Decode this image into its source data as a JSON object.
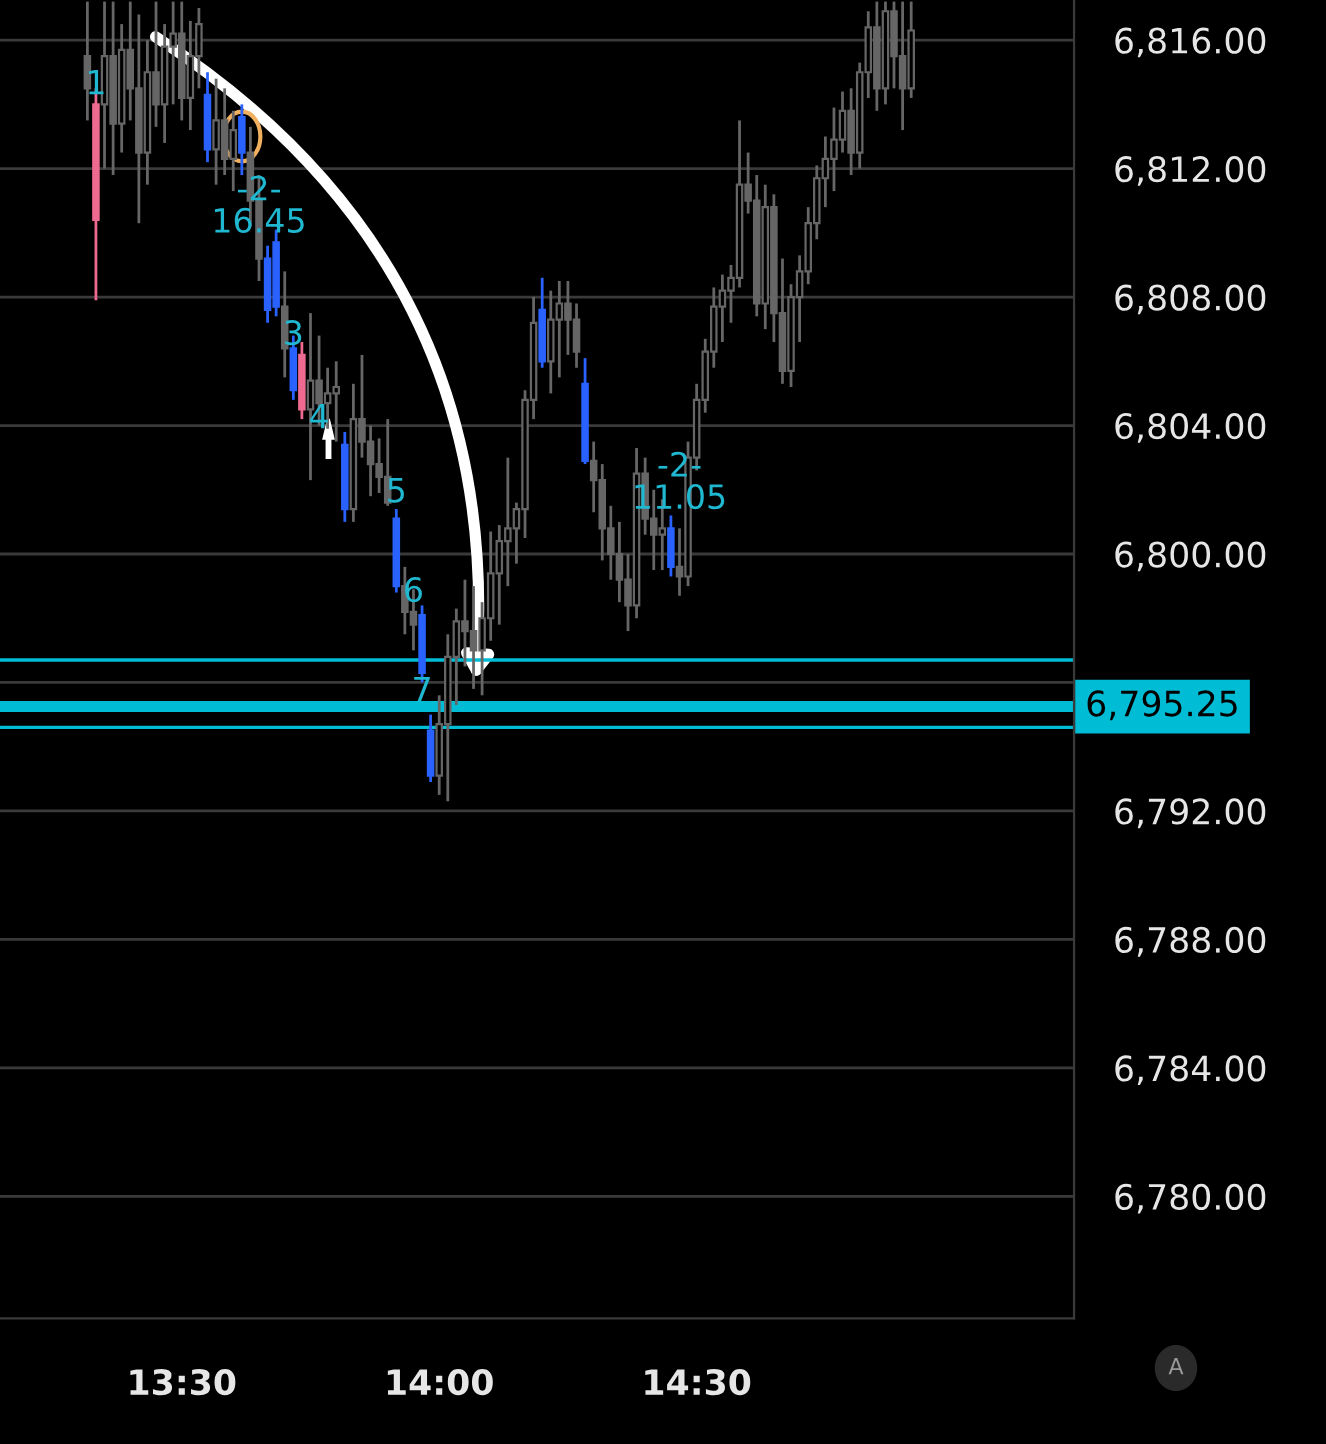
{
  "chart_data": {
    "type": "candlestick",
    "x": [
      13.3167,
      13.3333,
      13.35,
      13.3667,
      13.3833,
      13.4,
      13.4167,
      13.4333,
      13.45,
      13.4667,
      13.4833,
      13.5,
      13.5167,
      13.5333,
      13.55,
      13.5667,
      13.5833,
      13.6,
      13.6167,
      13.6333,
      13.65,
      13.6667,
      13.6833,
      13.7,
      13.7167,
      13.7333,
      13.75,
      13.7667,
      13.7833,
      13.8,
      13.8167,
      13.8333,
      13.85,
      13.8667,
      13.8833,
      13.9,
      13.9167,
      13.9333,
      13.95,
      13.9667,
      13.9833,
      14.0,
      14.0167,
      14.0333,
      14.05,
      14.0667,
      14.0833,
      14.1,
      14.1167,
      14.1333,
      14.15,
      14.1667,
      14.1833,
      14.2,
      14.2167,
      14.2333,
      14.25,
      14.2667,
      14.2833,
      14.3,
      14.3167,
      14.3333,
      14.35,
      14.3667,
      14.3833,
      14.4,
      14.4167,
      14.4333,
      14.45,
      14.4667,
      14.4833,
      14.5,
      14.5167,
      14.5333,
      14.55,
      14.5667,
      14.5833,
      14.6,
      14.6167,
      14.6333,
      14.65,
      14.6667,
      14.6833,
      14.7,
      14.7167,
      14.7333,
      14.75,
      14.7667,
      14.7833,
      14.8,
      14.8167,
      14.8333,
      14.85,
      14.8667,
      14.8833,
      14.9,
      14.9167
    ],
    "ohlc": [
      [
        6815.5,
        6817.2,
        6813.5,
        6814.5
      ],
      [
        6814.0,
        6814.5,
        6807.9,
        6810.4
      ],
      [
        6814,
        6817.2,
        6812,
        6815.5
      ],
      [
        6815.5,
        6817.2,
        6811.8,
        6813.4
      ],
      [
        6813.4,
        6816.5,
        6812.5,
        6815.7
      ],
      [
        6815.7,
        6817.2,
        6813.5,
        6814.5
      ],
      [
        6814.5,
        6816.8,
        6810.3,
        6812.5
      ],
      [
        6812.5,
        6816,
        6811.5,
        6815
      ],
      [
        6815,
        6817.2,
        6813.3,
        6814
      ],
      [
        6814,
        6816.5,
        6812.8,
        6815.8
      ],
      [
        6815.8,
        6817.2,
        6814,
        6816.2
      ],
      [
        6816.2,
        6817.2,
        6813.5,
        6814.2
      ],
      [
        6814.2,
        6816.6,
        6813.2,
        6815.5
      ],
      [
        6815.5,
        6817,
        6814.5,
        6816.5
      ],
      [
        6814.3,
        6815,
        6812.2,
        6812.6
      ],
      [
        6812.6,
        6814.8,
        6811.5,
        6813.5
      ],
      [
        6813.5,
        6814.5,
        6811.8,
        6812.3
      ],
      [
        6812.3,
        6813.8,
        6811.3,
        6813.2
      ],
      [
        6813.6,
        6814,
        6811.8,
        6812.5
      ],
      [
        6812.5,
        6813.3,
        6810.2,
        6811
      ],
      [
        6811,
        6811.8,
        6808.5,
        6809.2
      ],
      [
        6809.2,
        6809.6,
        6807.2,
        6807.6
      ],
      [
        6809.7,
        6810.1,
        6807.4,
        6807.7
      ],
      [
        6807.7,
        6808.8,
        6805.5,
        6806.4
      ],
      [
        6806.4,
        6806.8,
        6804.8,
        6805.1
      ],
      [
        6806.2,
        6806.6,
        6804.2,
        6804.5
      ],
      [
        6804.5,
        6807.5,
        6802.3,
        6805.4
      ],
      [
        6805.4,
        6806.8,
        6804,
        6804.7
      ],
      [
        6804.7,
        6805.8,
        6803.9,
        6805.0
      ],
      [
        6805.0,
        6806,
        6803.5,
        6805.2
      ],
      [
        6803.4,
        6803.8,
        6801.0,
        6801.4
      ],
      [
        6801.4,
        6805.3,
        6801,
        6804.2
      ],
      [
        6804.2,
        6806.2,
        6803,
        6803.5
      ],
      [
        6803.5,
        6804,
        6801.8,
        6802.8
      ],
      [
        6802.8,
        6803.6,
        6801.9,
        6802.4
      ],
      [
        6802.4,
        6804.2,
        6801.5,
        6801.6
      ],
      [
        6801.1,
        6801.4,
        6798.8,
        6799.0
      ],
      [
        6799,
        6799.6,
        6797.5,
        6798.2
      ],
      [
        6798.2,
        6798.9,
        6797.0,
        6797.8
      ],
      [
        6798.1,
        6798.4,
        6796.0,
        6796.3
      ],
      [
        6794.5,
        6795,
        6792.9,
        6793.1
      ],
      [
        6793.1,
        6795.6,
        6792.5,
        6794.7
      ],
      [
        6794.7,
        6797.5,
        6792.3,
        6796.8
      ],
      [
        6796.8,
        6798.3,
        6795.3,
        6797.9
      ],
      [
        6797.9,
        6799.2,
        6796.5,
        6797.6
      ],
      [
        6797.6,
        6799,
        6795.8,
        6797
      ],
      [
        6797,
        6798.5,
        6795.6,
        6798
      ],
      [
        6798,
        6800.7,
        6797.3,
        6799.4
      ],
      [
        6799.4,
        6800.9,
        6797.8,
        6800.4
      ],
      [
        6800.4,
        6803,
        6799,
        6800.8
      ],
      [
        6800.8,
        6801.6,
        6799.7,
        6801.4
      ],
      [
        6801.4,
        6805.1,
        6800.5,
        6804.8
      ],
      [
        6804.8,
        6808,
        6804.2,
        6807.2
      ],
      [
        6807.6,
        6808.6,
        6805.8,
        6806.0
      ],
      [
        6806,
        6808.2,
        6805,
        6807.3
      ],
      [
        6807.3,
        6808.5,
        6805.5,
        6807.8
      ],
      [
        6807.8,
        6808.5,
        6806.2,
        6807.3
      ],
      [
        6807.3,
        6807.8,
        6805.8,
        6806.3
      ],
      [
        6805.3,
        6806.1,
        6802.8,
        6802.9
      ],
      [
        6802.9,
        6803.5,
        6801.3,
        6802.3
      ],
      [
        6802.3,
        6802.8,
        6799.8,
        6800.8
      ],
      [
        6800.8,
        6801.5,
        6799.2,
        6800.0
      ],
      [
        6800,
        6801,
        6798.5,
        6799.2
      ],
      [
        6799.2,
        6800,
        6797.6,
        6798.4
      ],
      [
        6798.4,
        6803.3,
        6798,
        6802.5
      ],
      [
        6802.5,
        6803,
        6800.6,
        6801.1
      ],
      [
        6801.1,
        6802,
        6799.5,
        6800.6
      ],
      [
        6800.6,
        6801.7,
        6799.5,
        6800.8
      ],
      [
        6800.8,
        6801.2,
        6799.3,
        6799.6
      ],
      [
        6799.6,
        6800.8,
        6798.7,
        6799.3
      ],
      [
        6799.3,
        6803.5,
        6799,
        6803.0
      ],
      [
        6803,
        6805.3,
        6802.6,
        6804.8
      ],
      [
        6804.8,
        6806.7,
        6804.4,
        6806.3
      ],
      [
        6806.3,
        6808.3,
        6805.8,
        6807.7
      ],
      [
        6807.7,
        6808.7,
        6806.6,
        6808.2
      ],
      [
        6808.2,
        6809.0,
        6807.2,
        6808.6
      ],
      [
        6808.6,
        6813.5,
        6808.3,
        6811.5
      ],
      [
        6811.5,
        6812.5,
        6810.6,
        6811.0
      ],
      [
        6811,
        6811.8,
        6807.4,
        6807.8
      ],
      [
        6807.8,
        6811.5,
        6807,
        6810.8
      ],
      [
        6810.8,
        6811.2,
        6806.6,
        6807.5
      ],
      [
        6807.5,
        6809.2,
        6805.3,
        6805.7
      ],
      [
        6805.7,
        6808.4,
        6805.2,
        6808.0
      ],
      [
        6808,
        6809.3,
        6806.6,
        6808.8
      ],
      [
        6808.8,
        6810.8,
        6808.4,
        6810.3
      ],
      [
        6810.3,
        6812.1,
        6809.8,
        6811.7
      ],
      [
        6811.7,
        6813.0,
        6810.8,
        6812.3
      ],
      [
        6812.3,
        6813.9,
        6811.3,
        6812.9
      ],
      [
        6812.9,
        6814.4,
        6812.5,
        6813.8
      ],
      [
        6813.8,
        6814.5,
        6811.8,
        6812.5
      ],
      [
        6812.5,
        6815.3,
        6812,
        6815
      ],
      [
        6815,
        6816.9,
        6814.2,
        6816.4
      ],
      [
        6816.4,
        6817.2,
        6813.8,
        6814.5
      ],
      [
        6814.5,
        6817.2,
        6814,
        6816.9
      ],
      [
        6816.9,
        6817.2,
        6814.5,
        6815.5
      ],
      [
        6815.5,
        6817.2,
        6813.2,
        6814.5
      ],
      [
        6814.5,
        6817.2,
        6814.2,
        6816.3
      ]
    ],
    "colors": [
      "#666666",
      "#ee6a90",
      "#666666",
      "#666666",
      "#666666",
      "#666666",
      "#666666",
      "#666666",
      "#666666",
      "#666666",
      "#666666",
      "#666666",
      "#666666",
      "#666666",
      "#2962ff",
      "#666666",
      "#666666",
      "#666666",
      "#2962ff",
      "#666666",
      "#666666",
      "#2962ff",
      "#2962ff",
      "#666666",
      "#2962ff",
      "#ee6a90",
      "#666666",
      "#666666",
      "#666666",
      "#666666",
      "#2962ff",
      "#666666",
      "#666666",
      "#666666",
      "#666666",
      "#666666",
      "#2962ff",
      "#666666",
      "#666666",
      "#2962ff",
      "#2962ff",
      "#666666",
      "#666666",
      "#666666",
      "#666666",
      "#666666",
      "#666666",
      "#666666",
      "#666666",
      "#666666",
      "#666666",
      "#666666",
      "#666666",
      "#2962ff",
      "#666666",
      "#666666",
      "#666666",
      "#666666",
      "#2962ff",
      "#666666",
      "#666666",
      "#666666",
      "#666666",
      "#666666",
      "#666666",
      "#666666",
      "#666666",
      "#666666",
      "#2962ff",
      "#666666",
      "#666666",
      "#666666",
      "#666666",
      "#666666",
      "#666666",
      "#666666",
      "#666666",
      "#666666",
      "#666666",
      "#666666",
      "#666666",
      "#666666",
      "#666666",
      "#666666",
      "#666666",
      "#666666",
      "#666666",
      "#666666",
      "#666666",
      "#666666",
      "#666666",
      "#666666",
      "#666666",
      "#666666",
      "#666666",
      "#666666",
      "#666666"
    ],
    "xlim": [
      13.147,
      15.233
    ],
    "xticks": [
      {
        "value": 13.5,
        "label": "13:30"
      },
      {
        "value": 14.0,
        "label": "14:00"
      },
      {
        "value": 14.5,
        "label": "14:30"
      }
    ],
    "ylim": [
      6776.2,
      6817.25
    ],
    "yticks": [
      {
        "value": 6780,
        "label": "6,780.00"
      },
      {
        "value": 6784,
        "label": "6,784.00"
      },
      {
        "value": 6788,
        "label": "6,788.00"
      },
      {
        "value": 6792,
        "label": "6,792.00"
      },
      {
        "value": 6796,
        "label": null
      },
      {
        "value": 6800,
        "label": "6,800.00"
      },
      {
        "value": 6804,
        "label": "6,804.00"
      },
      {
        "value": 6808,
        "label": "6,808.00"
      },
      {
        "value": 6812,
        "label": "6,812.00"
      },
      {
        "value": 6816,
        "label": "6,816.00"
      }
    ],
    "grid": "y",
    "ref_lines": [
      {
        "axis": "y",
        "value": 6795.25,
        "label": "6,795.25",
        "color": "#00bcd4"
      },
      {
        "axis": "y",
        "value": 6796.7,
        "color": "#00bcd4"
      },
      {
        "axis": "y",
        "value": 6794.6,
        "color": "#00bcd4"
      }
    ],
    "annotations": [
      {
        "text": "1",
        "x": 13.3333,
        "y": 6814.6
      },
      {
        "text": "-2-\n16.45",
        "x": 13.65,
        "y": 6810.8
      },
      {
        "text": "3",
        "x": 13.7167,
        "y": 6806.8
      },
      {
        "text": "4",
        "x": 13.7667,
        "y": 6804.2
      },
      {
        "text": "5",
        "x": 13.9167,
        "y": 6801.9
      },
      {
        "text": "6",
        "x": 13.95,
        "y": 6798.8
      },
      {
        "text": "7",
        "x": 13.9667,
        "y": 6795.7
      },
      {
        "text": "-2-\n11.05",
        "x": 14.4667,
        "y": 6802.2
      },
      "A"
    ]
  }
}
